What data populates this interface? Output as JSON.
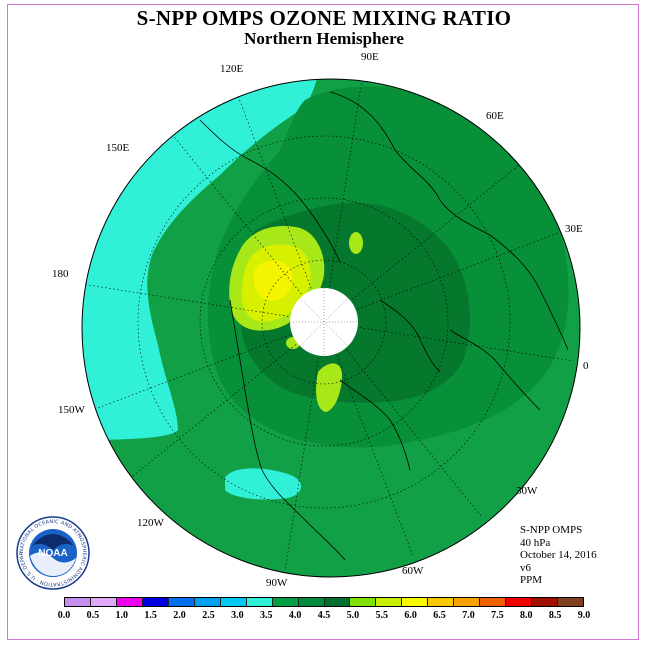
{
  "title": "S-NPP OMPS OZONE MIXING RATIO",
  "subtitle": "Northern Hemisphere",
  "longitude_labels": {
    "lon_120e": "120E",
    "lon_90e": "90E",
    "lon_60e": "60E",
    "lon_150e": "150E",
    "lon_30e": "30E",
    "lon_180": "180",
    "lon_0": "0",
    "lon_150w": "150W",
    "lon_30w": "30W",
    "lon_120w": "120W",
    "lon_60w": "60W",
    "lon_90w": "90W"
  },
  "info": {
    "instrument": "S-NPP OMPS",
    "level": "40 hPa",
    "date": "October 14, 2016",
    "version": "v6",
    "units": "PPM"
  },
  "logo": {
    "text": "NOAA",
    "ring_text": "NATIONAL OCEANIC AND ATMOSPHERIC ADMINISTRATION · U.S. DEPARTMENT OF COMMERCE"
  },
  "colorbar": {
    "colors": [
      "#c88cf0",
      "#e0a8f8",
      "#f000f0",
      "#0000e0",
      "#0070f0",
      "#00a0f0",
      "#00c8f0",
      "#30f0d8",
      "#00a040",
      "#008c3c",
      "#007030",
      "#80e000",
      "#c8f000",
      "#f8f800",
      "#f8c800",
      "#f8a000",
      "#f06000",
      "#f00000",
      "#a01000",
      "#804020"
    ],
    "ticks": [
      "0.0",
      "0.5",
      "1.0",
      "1.5",
      "2.0",
      "2.5",
      "3.0",
      "3.5",
      "4.0",
      "4.5",
      "5.0",
      "5.5",
      "6.0",
      "6.5",
      "7.0",
      "7.5",
      "8.0",
      "8.5",
      "9.0"
    ]
  },
  "map_colors": {
    "level_3_5": "#30f0d8",
    "level_4_0": "#12a046",
    "level_4_5": "#089038",
    "level_5_0": "#06782e",
    "level_5_5": "#a8e818",
    "level_6_0": "#d6f000",
    "level_6_5": "#f4f400",
    "missing": "#ffffff"
  }
}
